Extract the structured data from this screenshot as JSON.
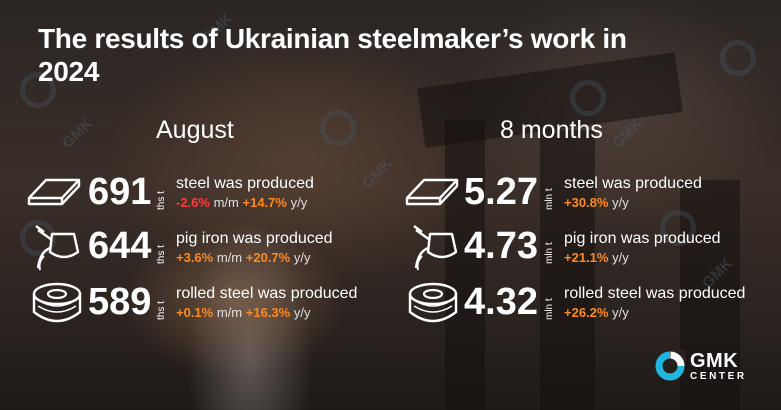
{
  "title": "The results of Ukrainian steelmaker’s work in 2024",
  "columns": {
    "august": {
      "heading": "August",
      "rows": [
        {
          "value": "691",
          "unit": "ths t",
          "text": "steel was produced",
          "mm": "-2.6%",
          "mm_label": "m/m",
          "yy": "+14.7%",
          "yy_label": "y/y",
          "icon": "steel-slab-icon"
        },
        {
          "value": "644",
          "unit": "ths t",
          "text": "pig iron was produced",
          "mm": "+3.6%",
          "mm_label": "m/m",
          "yy": "+20.7%",
          "yy_label": "y/y",
          "icon": "ladle-pour-icon"
        },
        {
          "value": "589",
          "unit": "ths t",
          "text": "rolled steel was produced",
          "mm": "+0.1%",
          "mm_label": "m/m",
          "yy": "+16.3%",
          "yy_label": "y/y",
          "icon": "steel-coil-icon"
        }
      ]
    },
    "months8": {
      "heading": "8 months",
      "rows": [
        {
          "value": "5.27",
          "unit": "mln t",
          "text": "steel was produced",
          "yy": "+30.8%",
          "yy_label": "y/y",
          "icon": "steel-slab-icon"
        },
        {
          "value": "4.73",
          "unit": "mln t",
          "text": "pig iron was produced",
          "yy": "+21.1%",
          "yy_label": "y/y",
          "icon": "ladle-pour-icon"
        },
        {
          "value": "4.32",
          "unit": "mln t",
          "text": "rolled steel was produced",
          "yy": "+26.2%",
          "yy_label": "y/y",
          "icon": "steel-coil-icon"
        }
      ]
    }
  },
  "logo": {
    "line1": "GMK",
    "line2": "CENTER"
  },
  "colors": {
    "negative": "#ff3b3b",
    "positive": "#ff8a1e",
    "logo_accent": "#1fb6e0",
    "text": "#ffffff"
  }
}
